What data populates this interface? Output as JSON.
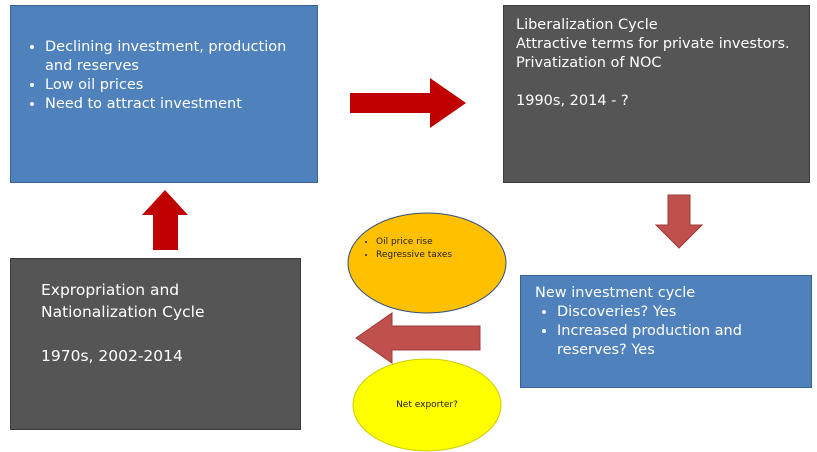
{
  "nodes": [
    {
      "bullets": [
        "Declining investment, production and reserves",
        "Low oil prices",
        "Need to attract investment"
      ]
    },
    {
      "title": "Liberalization Cycle",
      "text": "Attractive terms for private investors. Privatization of NOC",
      "date": "1990s, 2014 - ?"
    },
    {
      "title": "New investment cycle",
      "bullets": [
        "Discoveries? Yes",
        "Increased production and reserves? Yes"
      ]
    },
    {
      "title": "Expropriation and Nationalization Cycle",
      "date": "1970s, 2002-2014"
    }
  ],
  "notes": [
    {
      "bullets": [
        "Oil price rise",
        "Regressive taxes"
      ]
    },
    {
      "text": "Net exporter?"
    }
  ]
}
